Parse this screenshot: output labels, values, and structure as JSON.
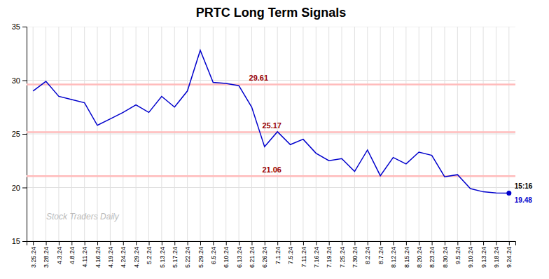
{
  "chart_data": {
    "type": "line",
    "title": "PRTC Long Term Signals",
    "categories": [
      "3.25.24",
      "3.28.24",
      "4.3.24",
      "4.8.24",
      "4.11.24",
      "4.16.24",
      "4.19.24",
      "4.24.24",
      "4.29.24",
      "5.2.24",
      "5.13.24",
      "5.17.24",
      "5.22.24",
      "5.29.24",
      "6.5.24",
      "6.10.24",
      "6.13.24",
      "6.21.24",
      "6.26.24",
      "7.1.24",
      "7.5.24",
      "7.11.24",
      "7.16.24",
      "7.19.24",
      "7.25.24",
      "7.30.24",
      "8.2.24",
      "8.7.24",
      "8.12.24",
      "8.15.24",
      "8.20.24",
      "8.23.24",
      "8.30.24",
      "9.5.24",
      "9.10.24",
      "9.13.24",
      "9.18.24",
      "9.24.24"
    ],
    "values": [
      29.0,
      29.9,
      28.5,
      28.2,
      27.9,
      25.8,
      26.4,
      27.0,
      27.7,
      27.0,
      28.5,
      27.5,
      29.0,
      32.8,
      29.8,
      29.7,
      29.5,
      27.5,
      23.8,
      25.2,
      24.0,
      24.5,
      23.2,
      22.5,
      22.7,
      21.5,
      23.5,
      21.1,
      22.8,
      22.2,
      23.3,
      23.0,
      21.0,
      21.2,
      19.9,
      19.6,
      19.5,
      19.48
    ],
    "color": "#0000cc",
    "hlines": {
      "values": [
        29.61,
        25.17,
        21.06
      ],
      "color": "#ffbbbb"
    },
    "annotations": [
      "15:16",
      "19.48",
      "Stock Traders Daily"
    ],
    "ylim": [
      15,
      35
    ],
    "yticks": [
      15,
      20,
      25,
      30,
      35
    ],
    "grid": true
  }
}
